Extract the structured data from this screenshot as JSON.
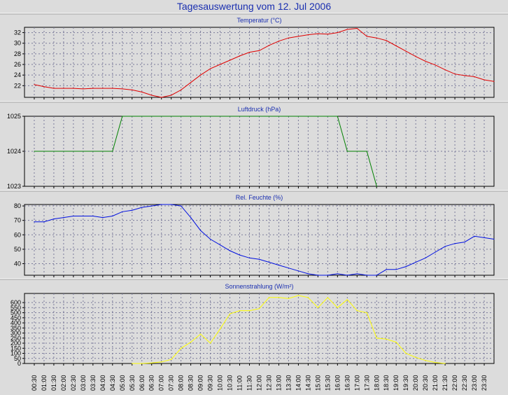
{
  "title": "Tagesauswertung vom 12. Jul 2006",
  "x_labels": [
    "00:30",
    "01:00",
    "01:30",
    "02:00",
    "02:30",
    "03:00",
    "03:30",
    "04:00",
    "04:30",
    "05:00",
    "05:30",
    "06:00",
    "06:30",
    "07:00",
    "07:30",
    "08:00",
    "08:30",
    "09:00",
    "09:30",
    "10:00",
    "10:30",
    "11:00",
    "11:30",
    "12:00",
    "12:30",
    "13:00",
    "13:30",
    "14:00",
    "14:30",
    "15:00",
    "15:30",
    "16:00",
    "16:30",
    "17:00",
    "17:30",
    "18:00",
    "18:30",
    "19:00",
    "19:30",
    "20:00",
    "20:30",
    "21:00",
    "21:30",
    "22:00",
    "22:30",
    "23:00",
    "23:30"
  ],
  "chart_data": [
    {
      "type": "line",
      "title": "Temperatur (°C)",
      "color": "#e00000",
      "ylim": [
        19.8,
        33
      ],
      "yticks": [
        22,
        24,
        26,
        28,
        30,
        32
      ],
      "grid": true,
      "x": [
        0.5,
        1,
        1.5,
        2,
        2.5,
        3,
        3.5,
        4,
        4.5,
        5,
        5.5,
        6,
        6.5,
        7,
        7.5,
        8,
        8.5,
        9,
        9.5,
        10,
        10.5,
        11,
        11.5,
        12,
        12.5,
        13,
        13.5,
        14,
        14.5,
        15,
        15.5,
        16,
        16.5,
        17,
        17.5,
        18,
        18.5,
        19,
        19.5,
        20,
        20.5,
        21,
        21.5,
        22,
        22.5,
        23,
        23.5,
        24
      ],
      "values": [
        22.2,
        21.8,
        21.5,
        21.5,
        21.5,
        21.4,
        21.5,
        21.5,
        21.5,
        21.4,
        21.2,
        20.8,
        20.2,
        19.8,
        20.2,
        21.2,
        22.6,
        24.0,
        25.2,
        26.0,
        26.8,
        27.6,
        28.3,
        28.6,
        29.6,
        30.4,
        31.0,
        31.3,
        31.6,
        31.8,
        31.7,
        32.0,
        32.6,
        32.8,
        31.3,
        31.0,
        30.5,
        29.5,
        28.5,
        27.5,
        26.6,
        25.9,
        25.0,
        24.2,
        23.9,
        23.7,
        23.1,
        22.8
      ]
    },
    {
      "type": "line",
      "title": "Luftdruck (hPa)",
      "color": "#008000",
      "ylim": [
        1023,
        1025
      ],
      "yticks": [
        1023,
        1024,
        1025
      ],
      "grid": true,
      "x": [
        0.5,
        4.5,
        5,
        16,
        16.5,
        17.5,
        18
      ],
      "values": [
        1024,
        1024,
        1025,
        1025,
        1024,
        1024,
        1023
      ]
    },
    {
      "type": "line",
      "title": "Rel. Feuchte (%)",
      "color": "#0010e0",
      "ylim": [
        32,
        81
      ],
      "yticks": [
        40,
        50,
        60,
        70,
        80
      ],
      "grid": true,
      "x": [
        0.5,
        1,
        1.5,
        2,
        2.5,
        3,
        3.5,
        4,
        4.5,
        5,
        5.5,
        6,
        6.5,
        7,
        7.5,
        8,
        8.5,
        9,
        9.5,
        10,
        10.5,
        11,
        11.5,
        12,
        12.5,
        13,
        13.5,
        14,
        14.5,
        15,
        15.5,
        16,
        16.5,
        17,
        17.5,
        18,
        18.5,
        19,
        19.5,
        20,
        20.5,
        21,
        21.5,
        22,
        22.5,
        23,
        23.5,
        24
      ],
      "values": [
        69,
        69,
        71,
        72,
        73,
        73,
        73,
        72,
        73,
        76,
        77,
        79,
        80,
        81,
        81,
        80,
        72,
        63,
        57,
        53,
        49,
        46,
        44,
        43,
        41,
        39,
        37,
        35,
        33,
        32,
        32,
        33,
        32,
        33,
        32,
        32,
        36,
        36,
        38,
        41,
        44,
        48,
        52,
        54,
        55,
        59,
        58,
        57
      ]
    },
    {
      "type": "line",
      "title": "Sonnenstrahlung (W/m²)",
      "color": "#ffff00",
      "ylim": [
        0,
        690
      ],
      "yticks": [
        0,
        50,
        100,
        150,
        200,
        250,
        300,
        350,
        400,
        450,
        500,
        550,
        600
      ],
      "grid": true,
      "x": [
        5.5,
        6,
        6.5,
        7,
        7.5,
        8,
        8.5,
        9,
        9.5,
        10,
        10.5,
        11,
        11.5,
        12,
        12.5,
        13,
        13.5,
        14,
        14.5,
        15,
        15.5,
        16,
        16.5,
        17,
        17.5,
        18,
        18.5,
        19,
        19.5,
        20,
        20.5,
        21,
        21.5
      ],
      "values": [
        0,
        0,
        5,
        15,
        40,
        150,
        210,
        290,
        200,
        340,
        490,
        520,
        520,
        540,
        650,
        650,
        640,
        670,
        650,
        550,
        650,
        550,
        630,
        520,
        500,
        250,
        240,
        210,
        100,
        60,
        30,
        10,
        0
      ]
    }
  ]
}
